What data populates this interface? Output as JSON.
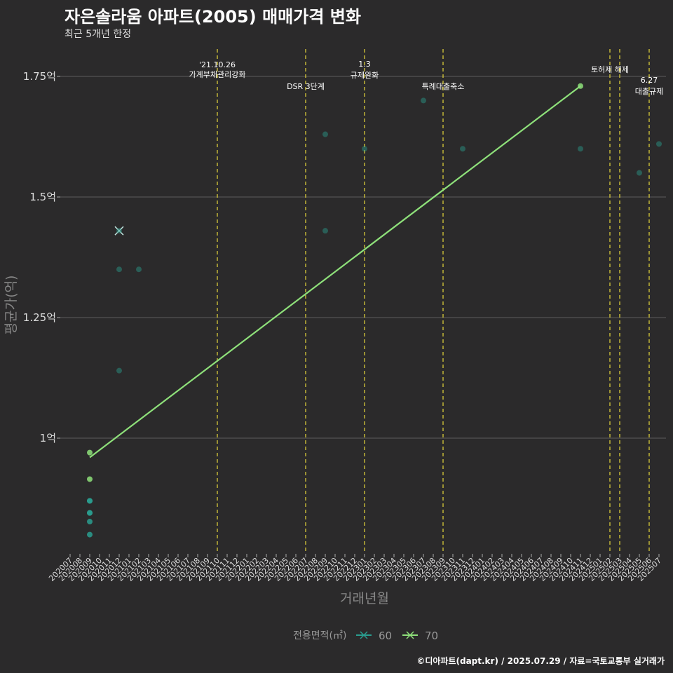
{
  "header": {
    "title": "자은솔라움 아파트(2005) 매매가격 변화",
    "subtitle": "최근 5개년 한정"
  },
  "caption": "©디아파트(dapt.kr) / 2025.07.29 / 자료=국토교통부 실거래가",
  "colors": {
    "bg": "#2b2a2b",
    "grid": "#5c5c5c",
    "s60": "#2a9d8f",
    "s70": "#8ee07a",
    "event": "#e6d83a",
    "text": "#dddddd"
  },
  "chart_data": {
    "type": "scatter",
    "title": "자은솔라움 아파트(2005) 매매가격 변화",
    "xlabel": "거래년월",
    "ylabel": "평균가(억)",
    "ylim": [
      0.75,
      1.82
    ],
    "yticks": [
      1.0,
      1.25,
      1.5,
      1.75
    ],
    "ytick_labels": [
      "1억",
      "1.25억",
      "1.5억",
      "1.75억"
    ],
    "x_categories": [
      "202007",
      "202008",
      "202009",
      "202010",
      "202011",
      "202012",
      "202101",
      "202102",
      "202103",
      "202104",
      "202105",
      "202106",
      "202107",
      "202108",
      "202109",
      "202110",
      "202111",
      "202112",
      "202201",
      "202202",
      "202203",
      "202204",
      "202205",
      "202206",
      "202207",
      "202208",
      "202209",
      "202210",
      "202211",
      "202212",
      "202301",
      "202302",
      "202303",
      "202304",
      "202305",
      "202306",
      "202307",
      "202308",
      "202309",
      "202310",
      "202311",
      "202312",
      "202401",
      "202402",
      "202403",
      "202404",
      "202405",
      "202406",
      "202407",
      "202408",
      "202409",
      "202410",
      "202411",
      "202412",
      "202501",
      "202502",
      "202503",
      "202504",
      "202505",
      "202506",
      "202507"
    ],
    "legend": {
      "title": "전용면적(㎡)",
      "entries": [
        "60",
        "70"
      ],
      "position": "bottom"
    },
    "series": [
      {
        "name": "60",
        "points": [
          {
            "x": "202009",
            "y": 0.8
          },
          {
            "x": "202009",
            "y": 0.827
          },
          {
            "x": "202009",
            "y": 0.845
          },
          {
            "x": "202009",
            "y": 0.845
          },
          {
            "x": "202009",
            "y": 0.87
          },
          {
            "x": "202009",
            "y": 0.87
          },
          {
            "x": "202012",
            "y": 1.43,
            "marker": "x"
          },
          {
            "x": "202012",
            "y": 1.43
          },
          {
            "x": "202012",
            "y": 1.35
          },
          {
            "x": "202102",
            "y": 1.35
          },
          {
            "x": "202012",
            "y": 1.14
          },
          {
            "x": "202209",
            "y": 1.63
          },
          {
            "x": "202209",
            "y": 1.43
          },
          {
            "x": "202301",
            "y": 1.6
          },
          {
            "x": "202307",
            "y": 1.7
          },
          {
            "x": "202311",
            "y": 1.6
          },
          {
            "x": "202411",
            "y": 1.6
          },
          {
            "x": "202505",
            "y": 1.55
          },
          {
            "x": "202507",
            "y": 1.61
          }
        ]
      },
      {
        "name": "70",
        "points": [
          {
            "x": "202009",
            "y": 0.97
          },
          {
            "x": "202009",
            "y": 0.915
          },
          {
            "x": "202411",
            "y": 1.73
          }
        ]
      }
    ],
    "trend": {
      "series": "70",
      "from": {
        "x": "202009",
        "y": 0.96
      },
      "to": {
        "x": "202411",
        "y": 1.73
      }
    },
    "events": [
      {
        "x": "202110",
        "line1": "'21.10.26",
        "line2": "가계부채관리강화"
      },
      {
        "x": "202207",
        "line1": "DSR 3단계",
        "line2": ""
      },
      {
        "x": "202301",
        "line1": "1.3",
        "line2": "규제완화"
      },
      {
        "x": "202309",
        "line1": "특례대출축소",
        "line2": ""
      },
      {
        "x": "202502",
        "line1": "토허제 해제",
        "line2": ""
      },
      {
        "x": "202503",
        "line1": "",
        "line2": ""
      },
      {
        "x": "202506",
        "line1": "6.27",
        "line2": "대출규제"
      }
    ]
  }
}
